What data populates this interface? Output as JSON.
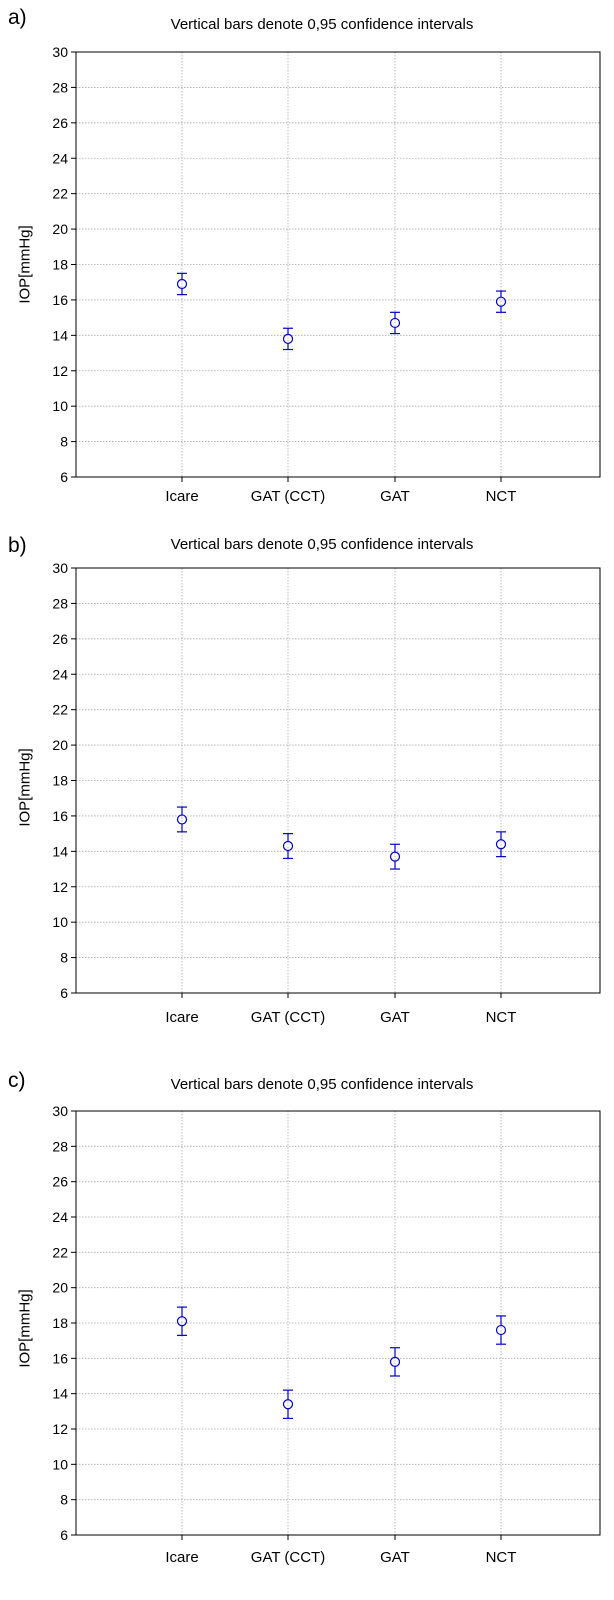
{
  "chart_data": [
    {
      "type": "scatter",
      "panel_label": "a)",
      "title": "Vertical bars denote 0,95 confidence intervals",
      "xlabel": "",
      "ylabel": "IOP[mmHg]",
      "categories": [
        "Icare",
        "GAT (CCT)",
        "GAT",
        "NCT"
      ],
      "means": [
        16.9,
        13.8,
        14.7,
        15.9
      ],
      "ci_lower": [
        16.3,
        13.2,
        14.1,
        15.3
      ],
      "ci_upper": [
        17.5,
        14.4,
        15.3,
        16.5
      ],
      "ylim": [
        6,
        30
      ],
      "yticks": [
        6,
        8,
        10,
        12,
        14,
        16,
        18,
        20,
        22,
        24,
        26,
        28,
        30
      ],
      "grid": true,
      "color": "#0000cc"
    },
    {
      "type": "scatter",
      "panel_label": "b)",
      "title": "Vertical bars denote 0,95 confidence intervals",
      "xlabel": "",
      "ylabel": "IOP[mmHg]",
      "categories": [
        "Icare",
        "GAT (CCT)",
        "GAT",
        "NCT"
      ],
      "means": [
        15.8,
        14.3,
        13.7,
        14.4
      ],
      "ci_lower": [
        15.1,
        13.6,
        13.0,
        13.7
      ],
      "ci_upper": [
        16.5,
        15.0,
        14.4,
        15.1
      ],
      "ylim": [
        6,
        30
      ],
      "yticks": [
        6,
        8,
        10,
        12,
        14,
        16,
        18,
        20,
        22,
        24,
        26,
        28,
        30
      ],
      "grid": true,
      "color": "#0000cc"
    },
    {
      "type": "scatter",
      "panel_label": "c)",
      "title": "Vertical bars denote 0,95 confidence intervals",
      "xlabel": "",
      "ylabel": "IOP[mmHg]",
      "categories": [
        "Icare",
        "GAT (CCT)",
        "GAT",
        "NCT"
      ],
      "means": [
        18.1,
        13.4,
        15.8,
        17.6
      ],
      "ci_lower": [
        17.3,
        12.6,
        15.0,
        16.8
      ],
      "ci_upper": [
        18.9,
        14.2,
        16.6,
        18.4
      ],
      "ylim": [
        6,
        30
      ],
      "yticks": [
        6,
        8,
        10,
        12,
        14,
        16,
        18,
        20,
        22,
        24,
        26,
        28,
        30
      ],
      "grid": true,
      "color": "#0000cc"
    }
  ]
}
